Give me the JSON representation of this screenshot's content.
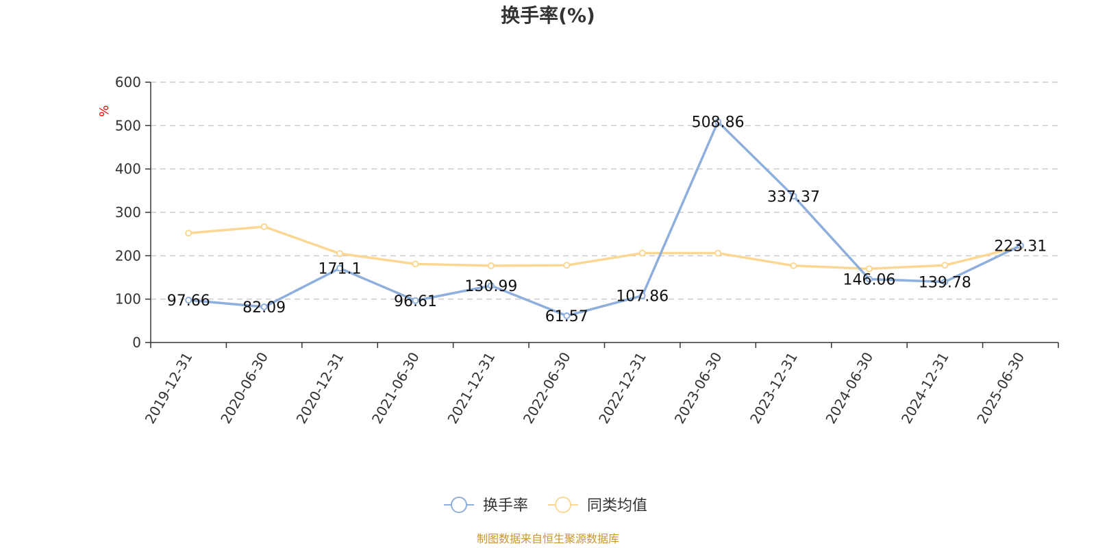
{
  "chart_data": {
    "type": "line",
    "title": "换手率(%)",
    "ylabel": "%",
    "ylim": [
      0,
      600
    ],
    "yticks": [
      0,
      100,
      200,
      300,
      400,
      500,
      600
    ],
    "grid": true,
    "legend_position": "bottom-center",
    "categories": [
      "2019-12-31",
      "2020-06-30",
      "2020-12-31",
      "2021-06-30",
      "2021-12-31",
      "2022-06-30",
      "2022-12-31",
      "2023-06-30",
      "2023-12-31",
      "2024-06-30",
      "2024-12-31",
      "2025-06-30"
    ],
    "series": [
      {
        "name": "换手率",
        "color": "#8eaedb",
        "values": [
          97.66,
          82.09,
          171.1,
          96.61,
          130.99,
          61.57,
          107.86,
          508.86,
          337.37,
          146.06,
          139.78,
          223.31
        ],
        "labels": [
          "97.66",
          "82.09",
          "171.1",
          "96.61",
          "130.99",
          "61.57",
          "107.86",
          "508.86",
          "337.37",
          "146.06",
          "139.78",
          "223.31"
        ]
      },
      {
        "name": "同类均值",
        "color": "#fbd794",
        "values": [
          252,
          267,
          205,
          181,
          177,
          178,
          206,
          206,
          177,
          170,
          178,
          221
        ]
      }
    ],
    "source": "制图数据来自恒生聚源数据库"
  }
}
